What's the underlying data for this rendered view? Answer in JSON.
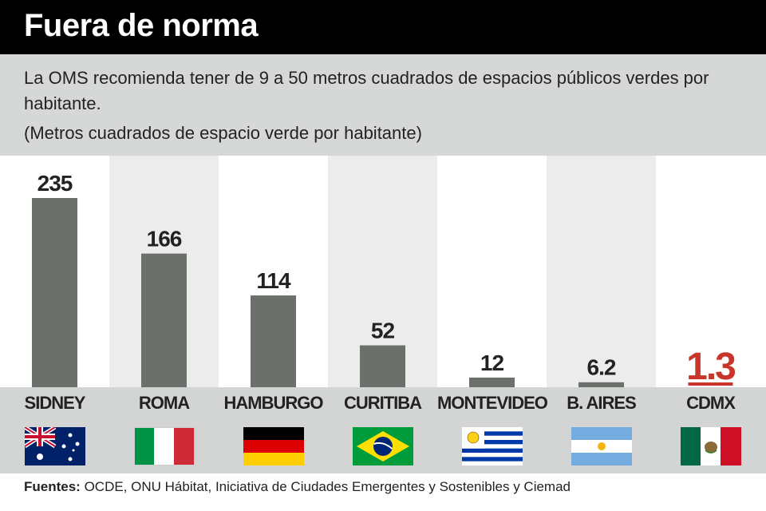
{
  "header": {
    "title": "Fuera de norma",
    "subtitle": "La OMS recomienda tener de 9 a 50 metros cuadrados de espacios públicos verdes por habitante.",
    "unit_label": "(Metros cuadrados de espacio verde por habitante)"
  },
  "chart_data": {
    "type": "bar",
    "categories": [
      "SIDNEY",
      "ROMA",
      "HAMBURGO",
      "CURITIBA",
      "MONTEVIDEO",
      "B. AIRES",
      "CDMX"
    ],
    "values": [
      235,
      166,
      114,
      52,
      12,
      6.2,
      1.3
    ],
    "value_labels": [
      "235",
      "166",
      "114",
      "52",
      "12",
      "6.2",
      "1.3"
    ],
    "flags": [
      "australia-flag-icon",
      "italy-flag-icon",
      "germany-flag-icon",
      "brazil-flag-icon",
      "uruguay-flag-icon",
      "argentina-flag-icon",
      "mexico-flag-icon"
    ],
    "highlight_category": "CDMX",
    "ylim": [
      0,
      235
    ],
    "grid": false,
    "colors": {
      "bar": "#6b706a",
      "highlight": "#c8362b",
      "label": "#222222"
    }
  },
  "footer": {
    "source_label": "Fuentes:",
    "source_text": " OCDE, ONU Hábitat, Iniciativa de Ciudades Emergentes y Sostenibles y Ciemad"
  }
}
